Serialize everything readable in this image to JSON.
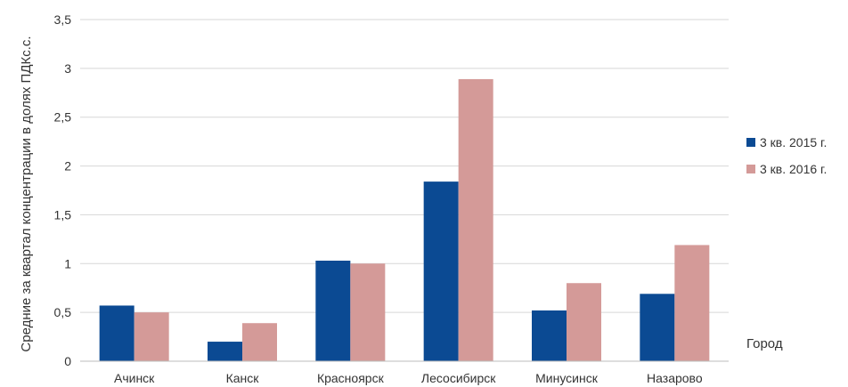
{
  "chart_data": {
    "type": "bar",
    "categories": [
      "Ачинск",
      "Канск",
      "Красноярск",
      "Лесосибирск",
      "Минусинск",
      "Назарово"
    ],
    "series": [
      {
        "name": "3 кв. 2015 г.",
        "color": "#0b4a93",
        "values": [
          0.57,
          0.2,
          1.03,
          1.84,
          0.52,
          0.69
        ]
      },
      {
        "name": "3 кв. 2016 г.",
        "color": "#d49a98",
        "values": [
          0.5,
          0.39,
          1.0,
          2.89,
          0.8,
          1.19
        ]
      }
    ],
    "xlabel": "Город",
    "ylabel": "Средние за квартал концентрации в долях ПДКс.с.",
    "ylim": [
      0,
      3.5
    ],
    "yticks": [
      "0",
      "0,5",
      "1",
      "1,5",
      "2",
      "2,5",
      "3",
      "3,5"
    ],
    "grid": true,
    "legend_position": "right"
  }
}
